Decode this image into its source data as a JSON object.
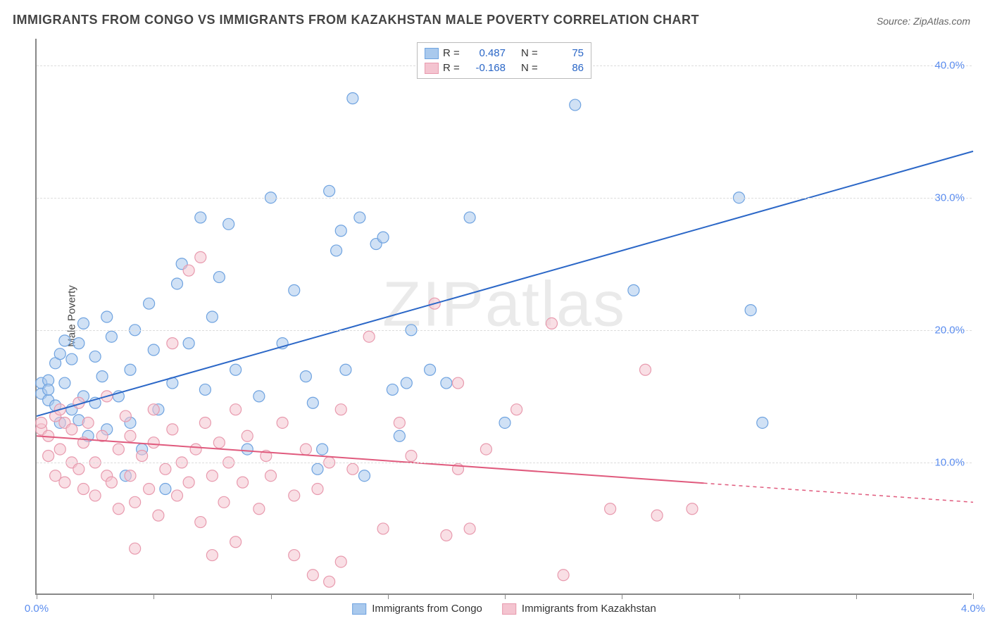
{
  "title": "IMMIGRANTS FROM CONGO VS IMMIGRANTS FROM KAZAKHSTAN MALE POVERTY CORRELATION CHART",
  "source": "Source: ZipAtlas.com",
  "ylabel": "Male Poverty",
  "watermark": "ZIPatlas",
  "chart": {
    "type": "scatter",
    "background_color": "#ffffff",
    "grid_color": "#dddddd",
    "axis_color": "#888888",
    "xlim": [
      0.0,
      4.0
    ],
    "ylim": [
      0.0,
      42.0
    ],
    "xtick_labels": {
      "0": "0.0%",
      "4": "4.0%"
    },
    "xtick_positions": [
      0,
      0.5,
      1.0,
      1.5,
      2.0,
      2.5,
      3.0,
      3.5,
      4.0
    ],
    "ytick_labels": {
      "10": "10.0%",
      "20": "20.0%",
      "30": "30.0%",
      "40": "40.0%"
    },
    "ytick_positions": [
      10,
      20,
      30,
      40
    ],
    "marker_radius": 8,
    "marker_opacity": 0.55,
    "line_width": 2,
    "series": [
      {
        "name": "Immigrants from Congo",
        "color": "#6fa3e0",
        "fill": "#a9c9ed",
        "line_color": "#2b67c7",
        "R": "0.487",
        "N": "75",
        "trend": {
          "x1": 0.0,
          "y1": 13.5,
          "x2": 4.0,
          "y2": 33.5,
          "solid_to_x": 4.0
        },
        "points": [
          [
            0.02,
            15.2
          ],
          [
            0.02,
            16.0
          ],
          [
            0.05,
            14.7
          ],
          [
            0.05,
            16.2
          ],
          [
            0.05,
            15.5
          ],
          [
            0.08,
            17.5
          ],
          [
            0.08,
            14.3
          ],
          [
            0.1,
            18.2
          ],
          [
            0.1,
            13.0
          ],
          [
            0.12,
            16.0
          ],
          [
            0.12,
            19.2
          ],
          [
            0.15,
            14.0
          ],
          [
            0.15,
            17.8
          ],
          [
            0.18,
            19.0
          ],
          [
            0.18,
            13.2
          ],
          [
            0.2,
            15.0
          ],
          [
            0.2,
            20.5
          ],
          [
            0.22,
            12.0
          ],
          [
            0.25,
            18.0
          ],
          [
            0.25,
            14.5
          ],
          [
            0.28,
            16.5
          ],
          [
            0.3,
            21.0
          ],
          [
            0.3,
            12.5
          ],
          [
            0.32,
            19.5
          ],
          [
            0.35,
            15.0
          ],
          [
            0.38,
            9.0
          ],
          [
            0.4,
            17.0
          ],
          [
            0.4,
            13.0
          ],
          [
            0.42,
            20.0
          ],
          [
            0.45,
            11.0
          ],
          [
            0.48,
            22.0
          ],
          [
            0.5,
            18.5
          ],
          [
            0.52,
            14.0
          ],
          [
            0.55,
            8.0
          ],
          [
            0.58,
            16.0
          ],
          [
            0.6,
            23.5
          ],
          [
            0.62,
            25.0
          ],
          [
            0.65,
            19.0
          ],
          [
            0.7,
            28.5
          ],
          [
            0.72,
            15.5
          ],
          [
            0.75,
            21.0
          ],
          [
            0.78,
            24.0
          ],
          [
            0.82,
            28.0
          ],
          [
            0.85,
            17.0
          ],
          [
            0.9,
            11.0
          ],
          [
            0.95,
            15.0
          ],
          [
            1.0,
            30.0
          ],
          [
            1.05,
            19.0
          ],
          [
            1.1,
            23.0
          ],
          [
            1.15,
            16.5
          ],
          [
            1.18,
            14.5
          ],
          [
            1.2,
            9.5
          ],
          [
            1.22,
            11.0
          ],
          [
            1.25,
            30.5
          ],
          [
            1.28,
            26.0
          ],
          [
            1.3,
            27.5
          ],
          [
            1.32,
            17.0
          ],
          [
            1.35,
            37.5
          ],
          [
            1.38,
            28.5
          ],
          [
            1.4,
            9.0
          ],
          [
            1.45,
            26.5
          ],
          [
            1.48,
            27.0
          ],
          [
            1.52,
            15.5
          ],
          [
            1.55,
            12.0
          ],
          [
            1.58,
            16.0
          ],
          [
            1.6,
            20.0
          ],
          [
            1.68,
            17.0
          ],
          [
            1.75,
            16.0
          ],
          [
            1.85,
            28.5
          ],
          [
            2.0,
            13.0
          ],
          [
            2.3,
            37.0
          ],
          [
            2.55,
            23.0
          ],
          [
            3.0,
            30.0
          ],
          [
            3.05,
            21.5
          ],
          [
            3.1,
            13.0
          ]
        ]
      },
      {
        "name": "Immigrants from Kazakhstan",
        "color": "#e89aae",
        "fill": "#f4c4d0",
        "line_color": "#e05a7d",
        "R": "-0.168",
        "N": "86",
        "trend": {
          "x1": 0.0,
          "y1": 12.0,
          "x2": 4.0,
          "y2": 7.0,
          "solid_to_x": 2.85
        },
        "points": [
          [
            0.02,
            12.5
          ],
          [
            0.02,
            13.0
          ],
          [
            0.05,
            12.0
          ],
          [
            0.05,
            10.5
          ],
          [
            0.08,
            13.5
          ],
          [
            0.08,
            9.0
          ],
          [
            0.1,
            14.0
          ],
          [
            0.1,
            11.0
          ],
          [
            0.12,
            8.5
          ],
          [
            0.12,
            13.0
          ],
          [
            0.15,
            10.0
          ],
          [
            0.15,
            12.5
          ],
          [
            0.18,
            9.5
          ],
          [
            0.18,
            14.5
          ],
          [
            0.2,
            8.0
          ],
          [
            0.2,
            11.5
          ],
          [
            0.22,
            13.0
          ],
          [
            0.25,
            7.5
          ],
          [
            0.25,
            10.0
          ],
          [
            0.28,
            12.0
          ],
          [
            0.3,
            9.0
          ],
          [
            0.3,
            15.0
          ],
          [
            0.32,
            8.5
          ],
          [
            0.35,
            11.0
          ],
          [
            0.35,
            6.5
          ],
          [
            0.38,
            13.5
          ],
          [
            0.4,
            9.0
          ],
          [
            0.4,
            12.0
          ],
          [
            0.42,
            7.0
          ],
          [
            0.42,
            3.5
          ],
          [
            0.45,
            10.5
          ],
          [
            0.48,
            8.0
          ],
          [
            0.5,
            14.0
          ],
          [
            0.5,
            11.5
          ],
          [
            0.52,
            6.0
          ],
          [
            0.55,
            9.5
          ],
          [
            0.58,
            12.5
          ],
          [
            0.58,
            19.0
          ],
          [
            0.6,
            7.5
          ],
          [
            0.62,
            10.0
          ],
          [
            0.65,
            8.5
          ],
          [
            0.65,
            24.5
          ],
          [
            0.68,
            11.0
          ],
          [
            0.7,
            5.5
          ],
          [
            0.7,
            25.5
          ],
          [
            0.72,
            13.0
          ],
          [
            0.75,
            9.0
          ],
          [
            0.75,
            3.0
          ],
          [
            0.78,
            11.5
          ],
          [
            0.8,
            7.0
          ],
          [
            0.82,
            10.0
          ],
          [
            0.85,
            14.0
          ],
          [
            0.85,
            4.0
          ],
          [
            0.88,
            8.5
          ],
          [
            0.9,
            12.0
          ],
          [
            0.95,
            6.5
          ],
          [
            0.98,
            10.5
          ],
          [
            1.0,
            9.0
          ],
          [
            1.05,
            13.0
          ],
          [
            1.1,
            7.5
          ],
          [
            1.1,
            3.0
          ],
          [
            1.15,
            11.0
          ],
          [
            1.18,
            1.5
          ],
          [
            1.2,
            8.0
          ],
          [
            1.25,
            10.0
          ],
          [
            1.25,
            1.0
          ],
          [
            1.3,
            2.5
          ],
          [
            1.3,
            14.0
          ],
          [
            1.35,
            9.5
          ],
          [
            1.42,
            19.5
          ],
          [
            1.48,
            5.0
          ],
          [
            1.55,
            13.0
          ],
          [
            1.6,
            10.5
          ],
          [
            1.7,
            22.0
          ],
          [
            1.75,
            4.5
          ],
          [
            1.8,
            16.0
          ],
          [
            1.8,
            9.5
          ],
          [
            1.85,
            5.0
          ],
          [
            1.92,
            11.0
          ],
          [
            2.05,
            14.0
          ],
          [
            2.2,
            20.5
          ],
          [
            2.25,
            1.5
          ],
          [
            2.45,
            6.5
          ],
          [
            2.6,
            17.0
          ],
          [
            2.65,
            6.0
          ],
          [
            2.8,
            6.5
          ]
        ]
      }
    ]
  },
  "legend_top": {
    "r_label": "R =",
    "n_label": "N ="
  },
  "legend_bottom": [
    {
      "label": "Immigrants from Congo",
      "fill": "#a9c9ed",
      "border": "#6fa3e0"
    },
    {
      "label": "Immigrants from Kazakhstan",
      "fill": "#f4c4d0",
      "border": "#e89aae"
    }
  ]
}
